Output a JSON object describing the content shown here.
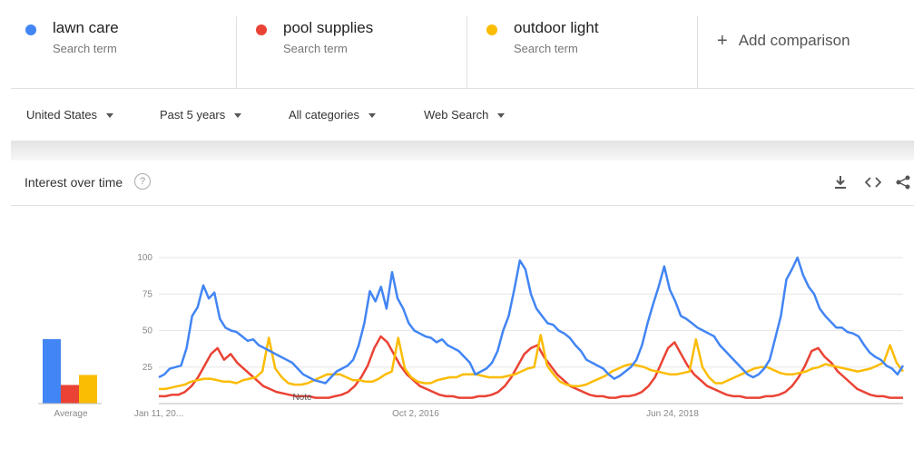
{
  "terms": [
    {
      "name": "lawn care",
      "subtitle": "Search term",
      "color": "#4285f4"
    },
    {
      "name": "pool supplies",
      "subtitle": "Search term",
      "color": "#ea4335"
    },
    {
      "name": "outdoor light",
      "subtitle": "Search term",
      "color": "#fbbc04"
    }
  ],
  "add_comparison": {
    "icon": "plus-icon",
    "label": "Add comparison"
  },
  "filters": {
    "region": "United States",
    "time": "Past 5 years",
    "category": "All categories",
    "search_type": "Web Search"
  },
  "panel": {
    "title": "Interest over time",
    "help_icon": "help-icon",
    "tools": [
      "download-icon",
      "embed-icon",
      "share-icon"
    ]
  },
  "chart_data": {
    "type": "line",
    "ylim": [
      0,
      100
    ],
    "y_ticks": [
      "100",
      "75",
      "50",
      "25"
    ],
    "x_tick_labels": [
      "Jan 11, 20...",
      "Oct 2, 2016",
      "Jun 24, 2018"
    ],
    "note_label": "Note",
    "average_label": "Average",
    "averages": [
      45,
      13,
      20
    ],
    "series": [
      {
        "name": "lawn care",
        "color": "#4285f4",
        "values": [
          18,
          20,
          24,
          25,
          26,
          38,
          60,
          66,
          81,
          72,
          76,
          58,
          52,
          50,
          49,
          46,
          43,
          44,
          40,
          38,
          36,
          34,
          32,
          30,
          28,
          24,
          20,
          18,
          16,
          15,
          14,
          18,
          22,
          24,
          26,
          30,
          40,
          55,
          77,
          70,
          80,
          65,
          90,
          72,
          65,
          55,
          50,
          48,
          46,
          45,
          42,
          44,
          40,
          38,
          36,
          32,
          28,
          20,
          22,
          24,
          28,
          36,
          50,
          60,
          78,
          98,
          92,
          75,
          65,
          60,
          55,
          54,
          50,
          48,
          45,
          40,
          36,
          30,
          28,
          26,
          24,
          20,
          17,
          19,
          22,
          25,
          30,
          40,
          55,
          68,
          80,
          94,
          78,
          70,
          60,
          58,
          55,
          52,
          50,
          48,
          46,
          40,
          36,
          32,
          28,
          24,
          20,
          18,
          20,
          24,
          30,
          45,
          60,
          85,
          92,
          100,
          88,
          80,
          75,
          65,
          60,
          56,
          52,
          52,
          49,
          48,
          46,
          40,
          35,
          32,
          30,
          26,
          24,
          20,
          26
        ]
      },
      {
        "name": "pool supplies",
        "color": "#ea4335",
        "values": [
          5,
          5,
          6,
          6,
          8,
          12,
          18,
          26,
          34,
          38,
          30,
          34,
          28,
          24,
          20,
          16,
          12,
          10,
          8,
          7,
          6,
          5,
          5,
          5,
          4,
          4,
          4,
          5,
          6,
          8,
          12,
          18,
          26,
          38,
          46,
          42,
          34,
          26,
          20,
          16,
          12,
          10,
          8,
          6,
          5,
          5,
          4,
          4,
          4,
          5,
          5,
          6,
          8,
          12,
          18,
          26,
          34,
          38,
          40,
          32,
          26,
          20,
          16,
          12,
          10,
          8,
          6,
          5,
          5,
          4,
          4,
          5,
          5,
          6,
          8,
          12,
          18,
          28,
          38,
          42,
          34,
          26,
          20,
          16,
          12,
          10,
          8,
          6,
          5,
          5,
          4,
          4,
          4,
          5,
          5,
          6,
          8,
          12,
          18,
          26,
          36,
          38,
          32,
          28,
          22,
          18,
          14,
          10,
          8,
          6,
          5,
          5,
          4,
          4,
          4
        ]
      },
      {
        "name": "outdoor light",
        "color": "#fbbc04",
        "values": [
          10,
          10,
          11,
          12,
          13,
          15,
          16,
          17,
          17,
          16,
          15,
          15,
          14,
          16,
          17,
          18,
          22,
          45,
          24,
          18,
          14,
          13,
          13,
          14,
          16,
          18,
          20,
          20,
          20,
          18,
          16,
          16,
          15,
          15,
          17,
          20,
          22,
          45,
          24,
          18,
          15,
          14,
          14,
          16,
          17,
          18,
          18,
          20,
          20,
          20,
          19,
          18,
          18,
          18,
          19,
          20,
          22,
          24,
          25,
          47,
          26,
          20,
          15,
          13,
          12,
          12,
          13,
          15,
          17,
          19,
          22,
          24,
          26,
          27,
          26,
          25,
          23,
          22,
          21,
          20,
          20,
          21,
          22,
          44,
          25,
          18,
          14,
          14,
          16,
          18,
          20,
          22,
          24,
          25,
          25,
          23,
          21,
          20,
          20,
          21,
          22,
          24,
          25,
          27,
          26,
          25,
          24,
          23,
          22,
          23,
          24,
          26,
          28,
          40,
          28,
          22
        ]
      }
    ]
  }
}
